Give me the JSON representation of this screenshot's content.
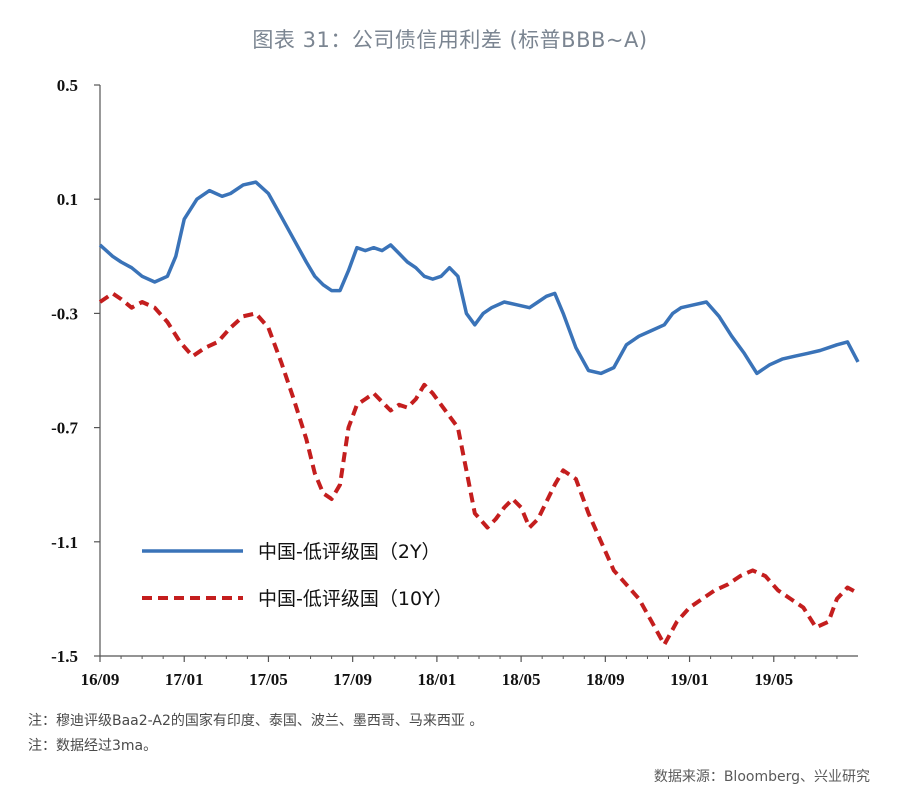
{
  "title": "图表 31：公司债信用利差 (标普BBB~A)",
  "notes": [
    "注：穆迪评级Baa2-A2的国家有印度、泰国、波兰、墨西哥、马来西亚 。",
    "注：数据经过3ma。"
  ],
  "source": "数据来源：Bloomberg、兴业研究",
  "chart_data": {
    "type": "line",
    "title": "图表 31：公司债信用利差 (标普BBB~A)",
    "xlabel": "",
    "ylabel": "",
    "ylim": [
      -1.5,
      0.5
    ],
    "yticks": [
      "0.5",
      "0.1",
      "-0.3",
      "-0.7",
      "-1.1",
      "-1.5"
    ],
    "xlim": [
      "2016-09",
      "2019-09"
    ],
    "xticks": [
      "16/09",
      "17/01",
      "17/05",
      "17/09",
      "18/01",
      "18/05",
      "18/09",
      "19/01",
      "19/05"
    ],
    "grid": false,
    "legend_placement": "bottom-left",
    "colors": {
      "series_2y": "#3a73b8",
      "series_10y": "#c41e1e",
      "axis": "#555555"
    },
    "series": [
      {
        "name": "中国-低评级国（2Y）",
        "style": "solid",
        "x": [
          0,
          0.6,
          1.0,
          1.5,
          2.0,
          2.6,
          3.2,
          3.6,
          4.0,
          4.6,
          5.2,
          5.8,
          6.2,
          6.8,
          7.4,
          8.0,
          8.6,
          9.2,
          9.8,
          10.2,
          10.6,
          11.0,
          11.4,
          11.8,
          12.2,
          12.6,
          13.0,
          13.4,
          13.8,
          14.2,
          14.6,
          15.0,
          15.4,
          15.8,
          16.2,
          16.6,
          17.0,
          17.4,
          17.8,
          18.2,
          18.6,
          19.2,
          19.8,
          20.4,
          20.8,
          21.2,
          21.6,
          22.0,
          22.6,
          23.2,
          23.8,
          24.4,
          25.0,
          25.6,
          26.2,
          26.8,
          27.2,
          27.6,
          28.2,
          28.8,
          29.4,
          30.0,
          30.6,
          31.2,
          31.8,
          32.4,
          33.0,
          33.6,
          34.2,
          34.6,
          35.0,
          35.5,
          36.0
        ],
        "y": [
          -0.06,
          -0.1,
          -0.12,
          -0.14,
          -0.17,
          -0.19,
          -0.17,
          -0.1,
          0.03,
          0.1,
          0.13,
          0.11,
          0.12,
          0.15,
          0.16,
          0.12,
          0.04,
          -0.04,
          -0.12,
          -0.17,
          -0.2,
          -0.22,
          -0.22,
          -0.15,
          -0.07,
          -0.08,
          -0.07,
          -0.08,
          -0.06,
          -0.09,
          -0.12,
          -0.14,
          -0.17,
          -0.18,
          -0.17,
          -0.14,
          -0.17,
          -0.3,
          -0.34,
          -0.3,
          -0.28,
          -0.26,
          -0.27,
          -0.28,
          -0.26,
          -0.24,
          -0.23,
          -0.3,
          -0.42,
          -0.5,
          -0.51,
          -0.49,
          -0.41,
          -0.38,
          -0.36,
          -0.34,
          -0.3,
          -0.28,
          -0.27,
          -0.26,
          -0.31,
          -0.38,
          -0.44,
          -0.51,
          -0.48,
          -0.46,
          -0.45,
          -0.44,
          -0.43,
          -0.42,
          -0.41,
          -0.4,
          -0.47
        ]
      },
      {
        "name": "中国-低评级国（10Y）",
        "style": "dashed",
        "x": [
          0,
          0.6,
          1.0,
          1.5,
          2.0,
          2.6,
          3.2,
          3.8,
          4.4,
          5.0,
          5.6,
          6.2,
          6.8,
          7.4,
          8.0,
          8.6,
          9.2,
          9.8,
          10.2,
          10.6,
          11.0,
          11.4,
          11.8,
          12.2,
          12.6,
          13.0,
          13.4,
          13.8,
          14.2,
          14.6,
          15.0,
          15.4,
          15.8,
          16.2,
          16.6,
          17.0,
          17.4,
          17.8,
          18.4,
          18.8,
          19.2,
          19.6,
          20.0,
          20.4,
          20.8,
          21.2,
          21.6,
          22.0,
          22.6,
          23.2,
          23.8,
          24.4,
          25.0,
          25.6,
          26.2,
          26.8,
          27.4,
          28.0,
          28.6,
          29.2,
          29.8,
          30.4,
          31.0,
          31.6,
          32.2,
          32.8,
          33.4,
          34.0,
          34.6,
          35.0,
          35.5,
          36.0
        ],
        "y": [
          -0.26,
          -0.23,
          -0.25,
          -0.28,
          -0.26,
          -0.28,
          -0.33,
          -0.4,
          -0.45,
          -0.42,
          -0.4,
          -0.35,
          -0.31,
          -0.3,
          -0.35,
          -0.47,
          -0.6,
          -0.74,
          -0.86,
          -0.93,
          -0.95,
          -0.9,
          -0.7,
          -0.62,
          -0.6,
          -0.58,
          -0.61,
          -0.64,
          -0.62,
          -0.63,
          -0.6,
          -0.55,
          -0.58,
          -0.62,
          -0.66,
          -0.7,
          -0.85,
          -1.0,
          -1.05,
          -1.02,
          -0.98,
          -0.95,
          -0.98,
          -1.05,
          -1.02,
          -0.96,
          -0.9,
          -0.85,
          -0.88,
          -1.0,
          -1.1,
          -1.2,
          -1.25,
          -1.3,
          -1.38,
          -1.46,
          -1.38,
          -1.33,
          -1.3,
          -1.27,
          -1.25,
          -1.22,
          -1.2,
          -1.22,
          -1.27,
          -1.3,
          -1.33,
          -1.4,
          -1.38,
          -1.3,
          -1.26,
          -1.28
        ]
      }
    ]
  }
}
